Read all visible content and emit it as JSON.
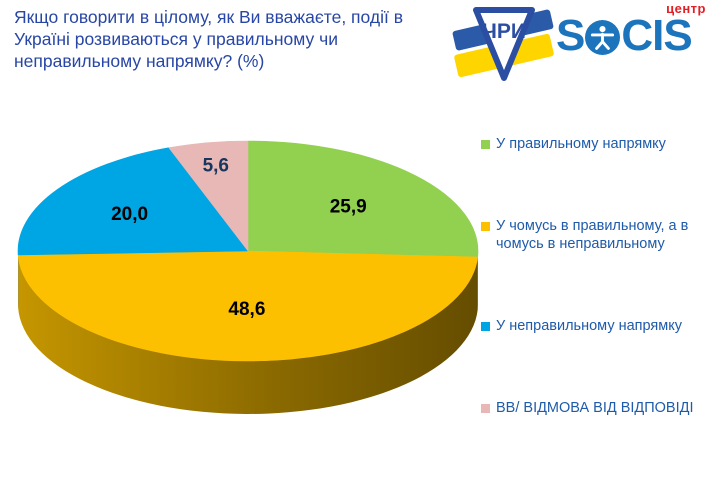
{
  "header": {
    "title": "Якщо говорити в цілому, як Ви вважаєте, події в Україні розвиваються у правильному чи неправильному напрямку? (%)",
    "logos": {
      "socis_part1": "S",
      "socis_part2": "CIS",
      "socis_center_label": "центр",
      "emblem_monogram": "ЧРИ"
    }
  },
  "chart_data": {
    "type": "pie",
    "title": "Якщо говорити в цілому, як Ви вважаєте, події в Україні розвиваються у правильному чи неправильному напрямку? (%)",
    "unit": "%",
    "effect": "3d",
    "direction": "clockwise",
    "start_angle_deg": 0,
    "legend_position": "right",
    "slices": [
      {
        "label": "У правильному напрямку",
        "value": 25.9,
        "display": "25,9",
        "color": "#92D050",
        "label_color": "#000000",
        "label_r": 0.6
      },
      {
        "label": "У чомусь в правильному, а в чомусь в неправильному",
        "value": 48.6,
        "display": "48,6",
        "color": "#FDC000",
        "label_color": "#000000",
        "label_r": 0.52
      },
      {
        "label": "У неправильному напрямку",
        "value": 20.0,
        "display": "20,0",
        "color": "#00A5E3",
        "label_color": "#000000",
        "label_r": 0.62
      },
      {
        "label": "ВВ/ ВІДМОВА ВІД ВІДПОВІДІ",
        "value": 5.6,
        "display": "5,6",
        "color": "#E7B8B5",
        "label_color": "#17365D",
        "label_r": 0.8
      }
    ]
  }
}
